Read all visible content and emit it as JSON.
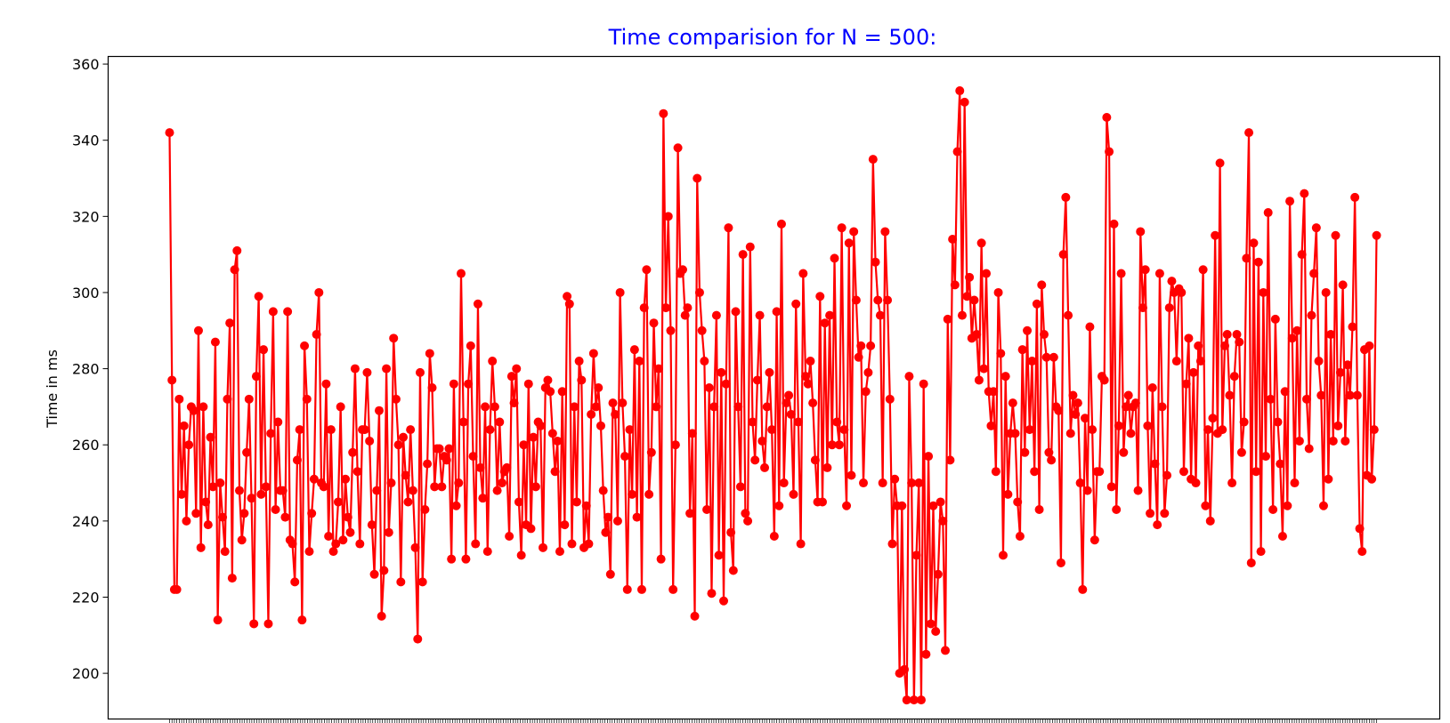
{
  "chart_data": {
    "type": "line",
    "title": "Time comparision for N = 500:",
    "xlabel": "",
    "ylabel": "Time in ms",
    "ylim": [
      188,
      362
    ],
    "yticks": [
      200,
      220,
      240,
      260,
      280,
      300,
      320,
      340,
      360
    ],
    "xticks_count": 500,
    "x_tick_labels_shown": false,
    "grid": false,
    "legend": "none",
    "colors": {
      "line": "#ff0000",
      "marker": "#ff0000",
      "title": "#0000ff",
      "axes": "#000000"
    },
    "marker": "circle",
    "series": [
      {
        "values": [
          342,
          277,
          222,
          222,
          272,
          247,
          265,
          240,
          260,
          270,
          269,
          242,
          290,
          233,
          270,
          245,
          239,
          262,
          249,
          287,
          214,
          250,
          241,
          232,
          272,
          292,
          225,
          306,
          311,
          248,
          235,
          242,
          258,
          272,
          246,
          213,
          278,
          299,
          247,
          285,
          249,
          213,
          263,
          295,
          243,
          266,
          248,
          248,
          241,
          295,
          235,
          234,
          224,
          256,
          264,
          214,
          286,
          272,
          232,
          242,
          251,
          289,
          300,
          250,
          249,
          276,
          236,
          264,
          232,
          234,
          245,
          270,
          235,
          251,
          241,
          237,
          258,
          280,
          253,
          234,
          264,
          264,
          279,
          261,
          239,
          226,
          248,
          269,
          215,
          227,
          280,
          237,
          250,
          288,
          272,
          260,
          224,
          262,
          252,
          245,
          264,
          248,
          233,
          209,
          279,
          224,
          243,
          255,
          284,
          275,
          249,
          259,
          259,
          249,
          257,
          256,
          259,
          230,
          276,
          244,
          250,
          305,
          266,
          230,
          276,
          286,
          257,
          234,
          297,
          254,
          246,
          270,
          232,
          264,
          282,
          270,
          248,
          266,
          250,
          253,
          254,
          236,
          278,
          271,
          280,
          245,
          231,
          260,
          239,
          276,
          238,
          262,
          249,
          266,
          265,
          233,
          275,
          277,
          274,
          263,
          253,
          261,
          232,
          274,
          239,
          299,
          297,
          234,
          270,
          245,
          282,
          277,
          233,
          244,
          234,
          268,
          284,
          270,
          275,
          265,
          248,
          237,
          241,
          226,
          271,
          268,
          240,
          300,
          271,
          257,
          222,
          264,
          247,
          285,
          241,
          282,
          222,
          296,
          306,
          247,
          258,
          292,
          270,
          280,
          230,
          347,
          296,
          320,
          290,
          222,
          260,
          338,
          305,
          306,
          294,
          296,
          242,
          263,
          215,
          330,
          300,
          290,
          282,
          243,
          275,
          221,
          270,
          294,
          231,
          279,
          219,
          276,
          317,
          237,
          227,
          295,
          270,
          249,
          310,
          242,
          240,
          312,
          266,
          256,
          277,
          294,
          261,
          254,
          270,
          279,
          264,
          236,
          295,
          244,
          318,
          250,
          271,
          273,
          268,
          247,
          297,
          266,
          234,
          305,
          278,
          276,
          282,
          271,
          256,
          245,
          299,
          245,
          292,
          254,
          294,
          260,
          309,
          266,
          260,
          317,
          264,
          244,
          313,
          252,
          316,
          298,
          283,
          286,
          250,
          274,
          279,
          286,
          335,
          308,
          298,
          294,
          250,
          316,
          298,
          272,
          234,
          251,
          244,
          200,
          244,
          201,
          193,
          278,
          250,
          193,
          231,
          250,
          193,
          276,
          205,
          257,
          213,
          244,
          211,
          226,
          245,
          240,
          206,
          293,
          256,
          314,
          302,
          337,
          353,
          294,
          350,
          299,
          304,
          288,
          298,
          289,
          277,
          313,
          280,
          305,
          274,
          265,
          274,
          253,
          300,
          284,
          231,
          278,
          247,
          263,
          271,
          263,
          245,
          236,
          285,
          258,
          290,
          264,
          282,
          253,
          297,
          243,
          302,
          289,
          283,
          258,
          256,
          283,
          270,
          269,
          229,
          310,
          325,
          294,
          263,
          273,
          268,
          271,
          250,
          222,
          267,
          248,
          291,
          264,
          235,
          253,
          253,
          278,
          277,
          346,
          337,
          249,
          318,
          243,
          265,
          305,
          258,
          270,
          273,
          263,
          270,
          271,
          248,
          316,
          296,
          306,
          265,
          242,
          275,
          255,
          239,
          305,
          270,
          242,
          252,
          296,
          303,
          300,
          282,
          301,
          300,
          253,
          276,
          288,
          251,
          279,
          250,
          286,
          282,
          306,
          244,
          264,
          240,
          267,
          315,
          263,
          334,
          264,
          286,
          289,
          273,
          250,
          278,
          289,
          287,
          258,
          266,
          309,
          342,
          229,
          313,
          253,
          308,
          232,
          300,
          257,
          321,
          272,
          243,
          293,
          266,
          255,
          236,
          274,
          244,
          324,
          288,
          250,
          290,
          261,
          310,
          326,
          272,
          259,
          294,
          305,
          317,
          282,
          273,
          244,
          300,
          251,
          289,
          261,
          315,
          265,
          279,
          302,
          261,
          281,
          273,
          291,
          325,
          273,
          238,
          232,
          285,
          252,
          286,
          251,
          264,
          315
        ]
      }
    ]
  }
}
